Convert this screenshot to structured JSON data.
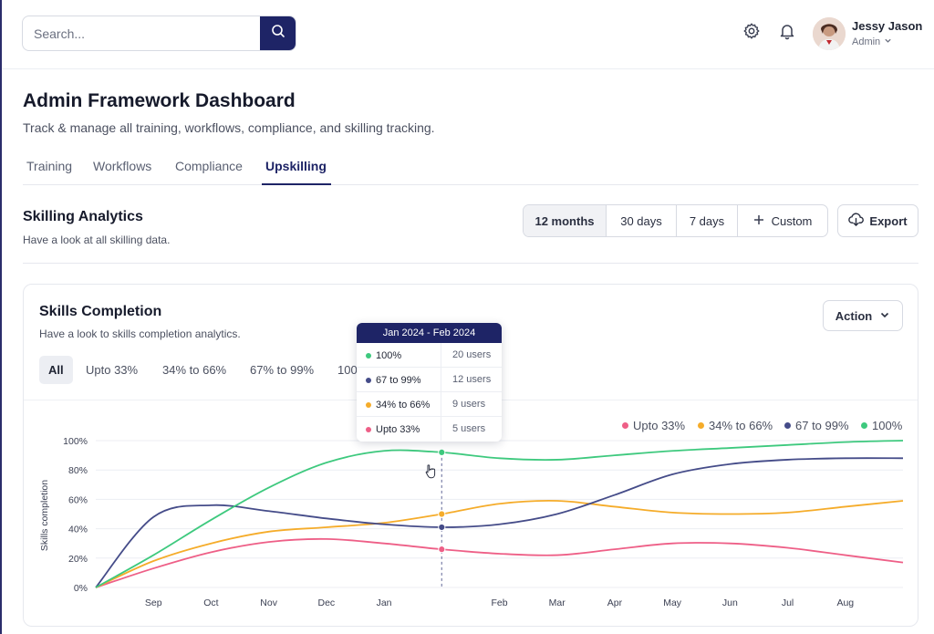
{
  "search": {
    "placeholder": "Search..."
  },
  "user": {
    "name": "Jessy Jason",
    "role": "Admin"
  },
  "icons": {
    "search": "search-icon",
    "settings": "gear-icon",
    "notifications": "bell-icon",
    "export": "cloud-download-icon",
    "custom": "plus-icon",
    "chevron": "chevron-down-icon",
    "cursor": "hand-pointer-icon"
  },
  "header": {
    "title": "Admin Framework Dashboard",
    "subtitle": "Track & manage all training, workflows, compliance, and skilling tracking."
  },
  "tabs": [
    {
      "label": "Training",
      "active": false
    },
    {
      "label": "Workflows",
      "active": false
    },
    {
      "label": "Compliance",
      "active": false
    },
    {
      "label": "Upskilling",
      "active": true
    }
  ],
  "section": {
    "title": "Skilling Analytics",
    "subtitle": "Have a look at all skilling data.",
    "ranges": [
      "12 months",
      "30 days",
      "7 days",
      "Custom"
    ],
    "selected_range": "12 months",
    "export_label": "Export"
  },
  "card": {
    "title": "Skills Completion",
    "subtitle": "Have a look to skills completion analytics.",
    "action_label": "Action",
    "filters": [
      "All",
      "Upto 33%",
      "34% to 66%",
      "67% to 99%",
      "100"
    ],
    "selected_filter": "All"
  },
  "tooltip": {
    "header": "Jan 2024 - Feb 2024",
    "rows": [
      {
        "label": "100%",
        "value": "20 users",
        "color": "#3ec97e"
      },
      {
        "label": "67 to 99%",
        "value": "12 users",
        "color": "#454c89"
      },
      {
        "label": "34% to 66%",
        "value": "9 users",
        "color": "#f5ac2a"
      },
      {
        "label": "Upto 33%",
        "value": "5 users",
        "color": "#ee5f87"
      }
    ]
  },
  "chart_data": {
    "type": "line",
    "ylabel": "Skills completion",
    "x": [
      "",
      "Sep",
      "Oct",
      "Nov",
      "Dec",
      "Jan",
      "",
      "Feb",
      "Mar",
      "Apr",
      "May",
      "Jun",
      "Jul",
      "Aug",
      ""
    ],
    "x_tick_labels": [
      "Sep",
      "Oct",
      "Nov",
      "Dec",
      "Jan",
      "Feb",
      "Mar",
      "Apr",
      "May",
      "Jun",
      "Jul",
      "Aug"
    ],
    "y_ticks": [
      "0%",
      "20%",
      "40%",
      "60%",
      "80%",
      "100%"
    ],
    "ylim": [
      0,
      100
    ],
    "grid": true,
    "legend_position": "top-right",
    "highlight_index": 6,
    "series": [
      {
        "name": "Upto 33%",
        "color": "#ee5f87",
        "values": [
          0,
          13,
          24,
          31,
          33,
          30,
          26,
          23,
          22,
          26,
          30,
          30,
          27,
          22,
          17
        ]
      },
      {
        "name": "34% to 66%",
        "color": "#f5ac2a",
        "values": [
          0,
          18,
          30,
          38,
          41,
          44,
          50,
          57,
          59,
          55,
          51,
          50,
          51,
          55,
          59
        ]
      },
      {
        "name": "67 to 99%",
        "color": "#454c89",
        "values": [
          0,
          48,
          56,
          52,
          47,
          43,
          41,
          43,
          50,
          63,
          77,
          84,
          87,
          88,
          88
        ]
      },
      {
        "name": "100%",
        "color": "#3ec97e",
        "values": [
          0,
          22,
          46,
          68,
          85,
          93,
          92,
          88,
          87,
          90,
          93,
          95,
          97,
          99,
          100
        ]
      }
    ]
  }
}
